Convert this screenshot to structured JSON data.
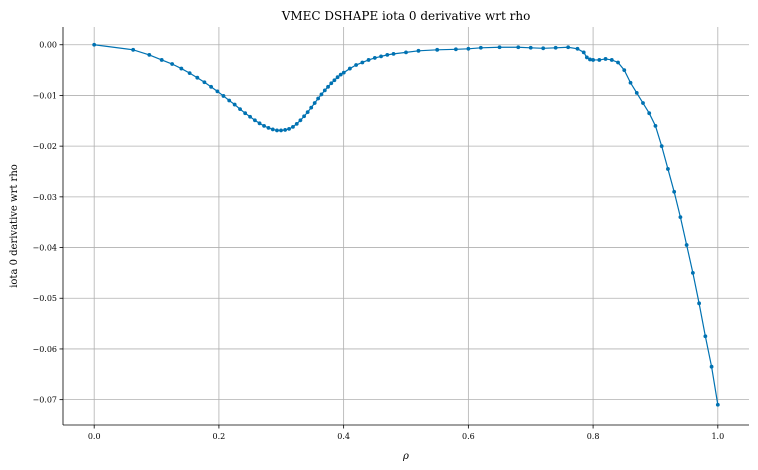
{
  "chart_data": {
    "type": "line",
    "title": "VMEC DSHAPE iota 0 derivative wrt rho",
    "xlabel": "ρ",
    "ylabel": "iota 0 derivative wrt rho",
    "xlim": [
      -0.05,
      1.05
    ],
    "ylim": [
      -0.075,
      0.0035
    ],
    "xticks": [
      0.0,
      0.2,
      0.4,
      0.6,
      0.8,
      1.0
    ],
    "xtick_labels": [
      "0.0",
      "0.2",
      "0.4",
      "0.6",
      "0.8",
      "1.0"
    ],
    "yticks": [
      0.0,
      -0.01,
      -0.02,
      -0.03,
      -0.04,
      -0.05,
      -0.06,
      -0.07
    ],
    "ytick_labels": [
      "0.00",
      "−0.01",
      "−0.02",
      "−0.03",
      "−0.04",
      "−0.05",
      "−0.06",
      "−0.07"
    ],
    "grid": true,
    "color": "#0072b2",
    "series": [
      {
        "x": [
          0.0,
          0.0625,
          0.0884,
          0.1083,
          0.125,
          0.1398,
          0.1531,
          0.1654,
          0.1768,
          0.1875,
          0.1976,
          0.2073,
          0.2165,
          0.2253,
          0.2339,
          0.2421,
          0.25,
          0.2577,
          0.2652,
          0.2724,
          0.2795,
          0.2864,
          0.2931,
          0.2996,
          0.3062,
          0.3125,
          0.3187,
          0.3248,
          0.3307,
          0.3366,
          0.3423,
          0.348,
          0.3536,
          0.3591,
          0.3644,
          0.3698,
          0.375,
          0.3802,
          0.3852,
          0.3903,
          0.3953,
          0.4002,
          0.41,
          0.42,
          0.43,
          0.44,
          0.45,
          0.46,
          0.47,
          0.48,
          0.5,
          0.52,
          0.55,
          0.58,
          0.6,
          0.62,
          0.65,
          0.68,
          0.7,
          0.72,
          0.74,
          0.76,
          0.775,
          0.785,
          0.79,
          0.795,
          0.8,
          0.81,
          0.82,
          0.83,
          0.84,
          0.85,
          0.86,
          0.87,
          0.88,
          0.89,
          0.9,
          0.91,
          0.92,
          0.93,
          0.94,
          0.95,
          0.96,
          0.97,
          0.98,
          0.99,
          1.0
        ],
        "y": [
          0.0,
          -0.001,
          -0.002,
          -0.003,
          -0.0038,
          -0.0047,
          -0.0056,
          -0.0065,
          -0.0074,
          -0.0083,
          -0.0092,
          -0.0101,
          -0.011,
          -0.0118,
          -0.0127,
          -0.0135,
          -0.0142,
          -0.0149,
          -0.0155,
          -0.016,
          -0.0164,
          -0.0167,
          -0.0169,
          -0.0169,
          -0.0168,
          -0.0166,
          -0.0162,
          -0.0156,
          -0.0149,
          -0.0141,
          -0.0133,
          -0.0124,
          -0.0115,
          -0.0106,
          -0.0098,
          -0.009,
          -0.0083,
          -0.0076,
          -0.007,
          -0.0064,
          -0.0059,
          -0.0055,
          -0.0047,
          -0.004,
          -0.0035,
          -0.003,
          -0.0026,
          -0.0023,
          -0.002,
          -0.0018,
          -0.0015,
          -0.0012,
          -0.001,
          -0.0009,
          -0.0008,
          -0.0006,
          -0.0005,
          -0.0005,
          -0.0006,
          -0.0007,
          -0.0006,
          -0.0005,
          -0.0008,
          -0.0015,
          -0.0025,
          -0.0029,
          -0.003,
          -0.003,
          -0.0028,
          -0.003,
          -0.0035,
          -0.005,
          -0.0075,
          -0.0095,
          -0.0115,
          -0.0135,
          -0.016,
          -0.02,
          -0.0245,
          -0.029,
          -0.034,
          -0.0395,
          -0.045,
          -0.051,
          -0.0575,
          -0.0635,
          -0.071
        ]
      }
    ]
  }
}
